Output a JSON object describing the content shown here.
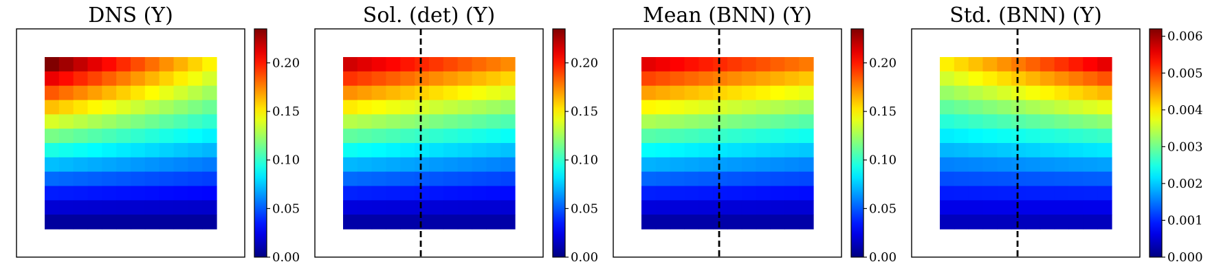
{
  "chart_data": [
    {
      "type": "heatmap",
      "title": "DNS (Y)",
      "colorbar": {
        "min": 0,
        "max": 0.235,
        "ticks": [
          "0.00",
          "0.05",
          "0.10",
          "0.15",
          "0.20"
        ],
        "tick_values": [
          0,
          0.05,
          0.1,
          0.15,
          0.2
        ]
      },
      "colormap": "jet",
      "grid_rows": 12,
      "grid_cols": 12,
      "dashed_divider": false,
      "top_row_value_left": 0.235,
      "top_row_value_right": 0.13,
      "note": "Values decrease from top to bottom; top-left is maximum"
    },
    {
      "type": "heatmap",
      "title": "Sol. (det) (Y)",
      "colorbar": {
        "min": 0,
        "max": 0.235,
        "ticks": [
          "0.00",
          "0.05",
          "0.10",
          "0.15",
          "0.20"
        ],
        "tick_values": [
          0,
          0.05,
          0.1,
          0.15,
          0.2
        ]
      },
      "colormap": "jet",
      "grid_rows": 12,
      "grid_cols": 12,
      "dashed_divider": true
    },
    {
      "type": "heatmap",
      "title": "Mean (BNN) (Y)",
      "colorbar": {
        "min": 0,
        "max": 0.235,
        "ticks": [
          "0.00",
          "0.05",
          "0.10",
          "0.15",
          "0.20"
        ],
        "tick_values": [
          0,
          0.05,
          0.1,
          0.15,
          0.2
        ]
      },
      "colormap": "jet",
      "grid_rows": 12,
      "grid_cols": 12,
      "dashed_divider": true
    },
    {
      "type": "heatmap",
      "title": "Std. (BNN) (Y)",
      "colorbar": {
        "min": 0,
        "max": 0.0062,
        "ticks": [
          "0.000",
          "0.001",
          "0.002",
          "0.003",
          "0.004",
          "0.005",
          "0.006"
        ],
        "tick_values": [
          0,
          0.001,
          0.002,
          0.003,
          0.004,
          0.005,
          0.006
        ]
      },
      "colormap": "jet",
      "grid_rows": 12,
      "grid_cols": 12,
      "dashed_divider": true
    }
  ]
}
